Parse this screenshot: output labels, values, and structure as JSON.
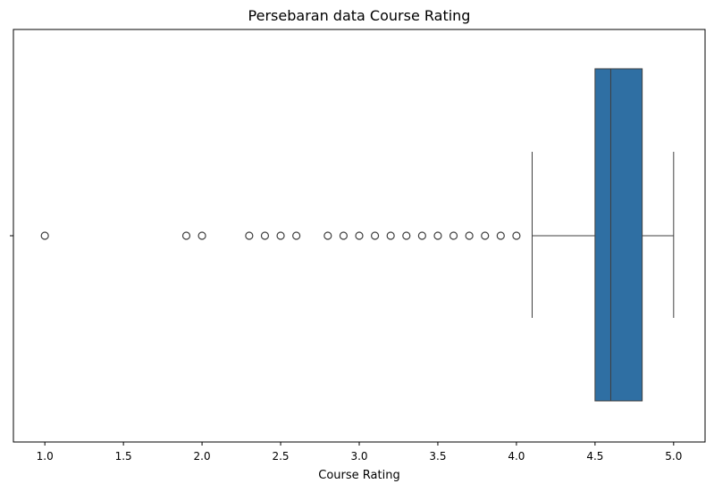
{
  "chart_data": {
    "type": "boxplot",
    "orientation": "horizontal",
    "title": "Persebaran data Course Rating",
    "xlabel": "Course Rating",
    "ylabel": "",
    "xlim": [
      0.8,
      5.2
    ],
    "xticks": [
      1.0,
      1.5,
      2.0,
      2.5,
      3.0,
      3.5,
      4.0,
      4.5,
      5.0
    ],
    "xtick_labels": [
      "1.0",
      "1.5",
      "2.0",
      "2.5",
      "3.0",
      "3.5",
      "4.0",
      "4.5",
      "5.0"
    ],
    "grid": false,
    "box": {
      "whisker_low": 4.1,
      "q1": 4.5,
      "median": 4.6,
      "q3": 4.8,
      "whisker_high": 5.0,
      "color": "#2f6fa3"
    },
    "outliers": [
      1.0,
      1.9,
      2.0,
      2.3,
      2.4,
      2.5,
      2.6,
      2.8,
      2.9,
      3.0,
      3.1,
      3.2,
      3.3,
      3.4,
      3.5,
      3.6,
      3.7,
      3.8,
      3.9,
      4.0
    ]
  }
}
